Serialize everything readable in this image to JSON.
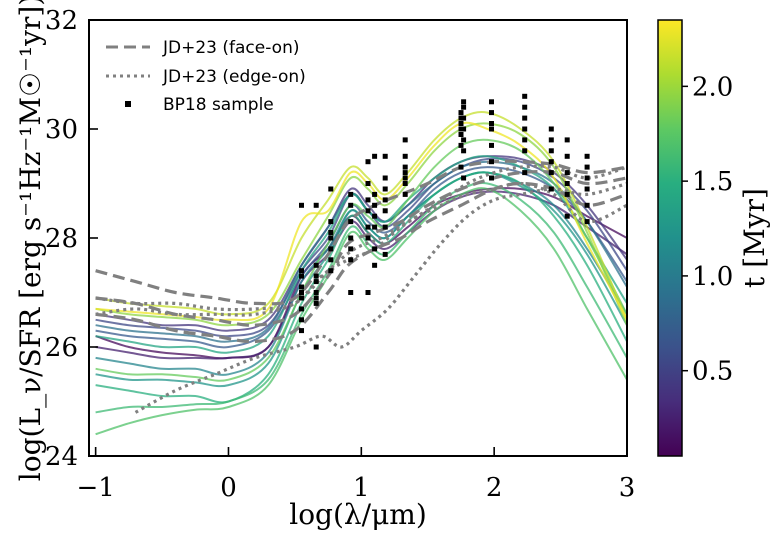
{
  "chart_data": {
    "type": "line",
    "xlabel": "log(λ/μm)",
    "ylabel": "log(L_ν/SFR [erg s⁻¹Hz⁻¹M☉⁻¹yr])",
    "xlim": [
      -1.05,
      3.0
    ],
    "ylim": [
      24,
      32
    ],
    "x_ticks": [
      -1,
      0,
      1,
      2,
      3
    ],
    "x_tick_labels": [
      "−1",
      "0",
      "1",
      "2",
      "3"
    ],
    "y_ticks": [
      24,
      26,
      28,
      30,
      32
    ],
    "y_tick_labels": [
      "24",
      "26",
      "28",
      "30",
      "32"
    ],
    "grid": false,
    "legend_position": "top-left",
    "legend": [
      {
        "label": "JD+23 (face-on)",
        "style": "dashed",
        "color": "#808080"
      },
      {
        "label": "JD+23 (edge-on)",
        "style": "dotted",
        "color": "#808080"
      },
      {
        "label": "BP18 sample",
        "style": "marker",
        "color": "#000000"
      }
    ],
    "colorbar": {
      "label": "t [Myr]",
      "colormap": "viridis",
      "range": [
        0.05,
        2.35
      ],
      "ticks": [
        0.5,
        1.0,
        1.5,
        2.0
      ],
      "tick_labels": [
        "0.5",
        "1.0",
        "1.5",
        "2.0"
      ]
    },
    "series": [
      {
        "t": 0.1,
        "y": [
          26.2,
          26.0,
          25.9,
          25.85,
          25.8,
          26.0,
          27.3,
          27.8,
          28.4,
          28.1,
          27.9,
          28.2,
          28.6,
          28.8,
          28.9,
          28.9,
          28.75,
          28.4,
          28.0
        ]
      },
      {
        "t": 0.25,
        "y": [
          26.0,
          25.9,
          25.8,
          25.8,
          25.8,
          26.0,
          27.2,
          27.7,
          28.3,
          28.0,
          27.8,
          28.1,
          28.5,
          28.75,
          28.85,
          28.8,
          28.6,
          28.2,
          27.7
        ]
      },
      {
        "t": 0.4,
        "y": [
          26.6,
          26.5,
          26.4,
          26.4,
          26.3,
          26.5,
          27.5,
          28.2,
          28.9,
          28.6,
          28.3,
          28.6,
          29.1,
          29.4,
          29.5,
          29.45,
          29.2,
          28.6,
          27.6
        ]
      },
      {
        "t": 0.55,
        "y": [
          26.5,
          26.4,
          26.35,
          26.3,
          26.2,
          26.4,
          27.4,
          28.0,
          28.8,
          28.5,
          28.2,
          28.5,
          29.0,
          29.3,
          29.45,
          29.4,
          29.1,
          28.5,
          27.4
        ]
      },
      {
        "t": 0.7,
        "y": [
          26.3,
          26.2,
          26.15,
          26.1,
          26.0,
          26.3,
          27.3,
          27.9,
          28.6,
          28.3,
          28.1,
          28.4,
          28.9,
          29.2,
          29.3,
          29.2,
          28.9,
          28.3,
          27.2
        ]
      },
      {
        "t": 0.9,
        "y": [
          26.4,
          26.3,
          26.25,
          26.2,
          26.1,
          26.35,
          27.5,
          28.2,
          28.8,
          28.5,
          28.3,
          28.6,
          29.0,
          29.3,
          29.4,
          29.3,
          29.0,
          28.3,
          27.1
        ]
      },
      {
        "t": 1.1,
        "y": [
          25.8,
          25.7,
          25.6,
          25.6,
          25.5,
          25.9,
          27.2,
          27.8,
          28.5,
          28.2,
          28.0,
          28.4,
          28.8,
          29.1,
          29.2,
          29.0,
          28.6,
          27.8,
          26.6
        ]
      },
      {
        "t": 1.25,
        "y": [
          25.5,
          25.4,
          25.4,
          25.35,
          25.3,
          25.7,
          27.0,
          27.7,
          28.5,
          28.2,
          28.0,
          28.4,
          28.8,
          29.1,
          29.2,
          28.95,
          28.5,
          27.7,
          26.4
        ]
      },
      {
        "t": 1.4,
        "y": [
          26.2,
          26.1,
          26.0,
          26.0,
          25.9,
          26.2,
          27.4,
          28.1,
          28.8,
          28.5,
          28.3,
          28.7,
          29.1,
          29.4,
          29.5,
          29.3,
          28.9,
          28.0,
          26.8
        ]
      },
      {
        "t": 1.5,
        "y": [
          25.3,
          25.2,
          25.1,
          25.1,
          25.0,
          25.5,
          26.8,
          27.6,
          28.4,
          28.1,
          27.9,
          28.3,
          28.8,
          29.1,
          29.2,
          29.0,
          28.4,
          27.5,
          26.1
        ]
      },
      {
        "t": 1.6,
        "y": [
          24.8,
          24.9,
          24.9,
          24.95,
          25.0,
          25.4,
          26.6,
          27.4,
          28.2,
          27.9,
          27.7,
          28.1,
          28.6,
          28.9,
          29.0,
          28.7,
          28.1,
          27.1,
          25.8
        ]
      },
      {
        "t": 1.7,
        "y": [
          24.4,
          24.6,
          24.75,
          24.85,
          24.9,
          25.3,
          26.5,
          27.3,
          28.1,
          27.8,
          27.6,
          28.0,
          28.5,
          28.8,
          28.9,
          28.5,
          27.8,
          26.7,
          25.4
        ]
      },
      {
        "t": 1.8,
        "y": [
          25.6,
          25.5,
          25.5,
          25.45,
          25.4,
          25.8,
          27.0,
          27.9,
          28.6,
          28.4,
          28.2,
          28.7,
          29.3,
          29.7,
          29.8,
          29.6,
          29.0,
          28.0,
          26.6
        ]
      },
      {
        "t": 1.95,
        "y": [
          26.7,
          26.6,
          26.55,
          26.5,
          26.4,
          26.6,
          27.6,
          28.4,
          29.1,
          28.9,
          28.6,
          29.0,
          29.6,
          30.0,
          30.1,
          29.9,
          29.3,
          28.1,
          26.4
        ]
      },
      {
        "t": 2.15,
        "y": [
          26.9,
          26.8,
          26.75,
          26.7,
          26.6,
          26.8,
          28.0,
          28.7,
          29.3,
          29.1,
          28.8,
          29.2,
          29.8,
          30.2,
          30.3,
          30.0,
          29.4,
          28.2,
          26.5
        ]
      },
      {
        "t": 2.3,
        "y": [
          26.7,
          26.65,
          26.6,
          26.55,
          26.5,
          26.7,
          28.3,
          28.5,
          29.2,
          29.0,
          28.7,
          29.1,
          29.7,
          30.1,
          30.0,
          29.7,
          29.1,
          27.9,
          26.5
        ]
      }
    ],
    "series_x": [
      -1.0,
      -0.75,
      -0.5,
      -0.25,
      0.0,
      0.3,
      0.55,
      0.75,
      0.92,
      1.05,
      1.18,
      1.35,
      1.55,
      1.75,
      1.95,
      2.2,
      2.45,
      2.7,
      3.0
    ],
    "face_on": [
      {
        "x": [
          -1.0,
          -0.7,
          -0.4,
          -0.1,
          0.2,
          0.5,
          0.75,
          0.9,
          1.1,
          1.3,
          1.5,
          1.75,
          2.0,
          2.2,
          2.45,
          2.7,
          3.0
        ],
        "y": [
          27.4,
          27.2,
          27.0,
          26.9,
          26.8,
          26.9,
          27.7,
          28.3,
          28.6,
          28.8,
          29.0,
          29.3,
          29.4,
          29.4,
          29.35,
          29.2,
          29.3
        ]
      },
      {
        "x": [
          -1.0,
          -0.7,
          -0.4,
          -0.1,
          0.2,
          0.5,
          0.75,
          0.9,
          1.1,
          1.3,
          1.5,
          1.75,
          2.0,
          2.2,
          2.45,
          2.7,
          3.0
        ],
        "y": [
          26.9,
          26.8,
          26.6,
          26.5,
          26.4,
          26.6,
          27.3,
          27.9,
          28.1,
          28.3,
          28.6,
          28.9,
          29.1,
          29.2,
          29.2,
          29.0,
          29.1
        ]
      },
      {
        "x": [
          -1.0,
          -0.7,
          -0.4,
          -0.1,
          0.2,
          0.5,
          0.75,
          0.9,
          1.1,
          1.3,
          1.5,
          1.75,
          2.0,
          2.2,
          2.45,
          2.7,
          3.0
        ],
        "y": [
          26.6,
          26.5,
          26.3,
          26.2,
          26.1,
          26.3,
          27.0,
          27.5,
          27.8,
          28.0,
          28.3,
          28.6,
          28.9,
          29.0,
          28.9,
          28.6,
          28.8
        ]
      }
    ],
    "edge_on": [
      {
        "x": [
          -0.7,
          -0.4,
          -0.1,
          0.2,
          0.5,
          0.7,
          0.85,
          1.0,
          1.2,
          1.4,
          1.6,
          1.8,
          2.0,
          2.2,
          2.45,
          2.7,
          3.0
        ],
        "y": [
          24.8,
          25.2,
          25.5,
          25.8,
          26.0,
          26.2,
          26.0,
          26.3,
          26.7,
          27.3,
          27.9,
          28.4,
          28.7,
          28.8,
          28.9,
          28.8,
          29.0
        ]
      },
      {
        "x": [
          -1.0,
          -0.7,
          -0.4,
          -0.1,
          0.2,
          0.5,
          0.7,
          0.9,
          1.1,
          1.3,
          1.55,
          1.8,
          2.0,
          2.2,
          2.45,
          2.7,
          3.0
        ],
        "y": [
          26.6,
          26.7,
          26.6,
          26.6,
          26.6,
          26.8,
          27.3,
          27.6,
          27.8,
          28.2,
          28.6,
          29.0,
          29.2,
          29.3,
          29.3,
          29.1,
          29.3
        ]
      },
      {
        "x": [
          -1.0,
          -0.7,
          -0.4,
          -0.1,
          0.2,
          0.5,
          0.75,
          0.95,
          1.15,
          1.35,
          1.6,
          1.8,
          2.0,
          2.2,
          2.45,
          2.7,
          3.0
        ],
        "y": [
          26.9,
          26.8,
          26.8,
          26.7,
          26.7,
          26.8,
          27.4,
          27.8,
          28.0,
          28.3,
          28.6,
          28.8,
          28.9,
          29.0,
          28.8,
          28.3,
          28.6
        ]
      }
    ],
    "bp18": [
      {
        "x": 0.55,
        "y": [
          26.3,
          26.5,
          26.7,
          26.9,
          27.0,
          27.1,
          27.3,
          27.4,
          28.6
        ]
      },
      {
        "x": 0.66,
        "y": [
          26.0,
          26.8,
          26.9,
          27.0,
          27.2,
          27.3,
          27.5,
          28.6
        ]
      },
      {
        "x": 0.77,
        "y": [
          27.4,
          27.6,
          27.8,
          28.0,
          28.1,
          28.3,
          28.9
        ]
      },
      {
        "x": 0.92,
        "y": [
          27.0,
          27.6,
          27.8,
          28.0,
          28.3,
          28.6,
          28.8
        ]
      },
      {
        "x": 1.05,
        "y": [
          27.0,
          28.0,
          28.2,
          28.5,
          28.7,
          29.0,
          29.4
        ]
      },
      {
        "x": 1.1,
        "y": [
          27.5,
          27.8,
          28.2,
          28.4,
          28.6,
          28.8,
          29.5
        ]
      },
      {
        "x": 1.18,
        "y": [
          27.7,
          28.2,
          28.5,
          28.7,
          28.9,
          29.1,
          29.5
        ]
      },
      {
        "x": 1.33,
        "y": [
          28.8,
          29.0,
          29.1,
          29.3,
          29.5,
          29.8,
          29.2
        ]
      },
      {
        "x": 1.75,
        "y": [
          29.3,
          29.7,
          29.9,
          30.0,
          30.1,
          30.2,
          30.3
        ]
      },
      {
        "x": 1.77,
        "y": [
          29.1,
          29.6,
          29.8,
          30.0,
          30.4,
          30.5,
          30.2
        ]
      },
      {
        "x": 1.98,
        "y": [
          29.1,
          29.4,
          29.7,
          30.0,
          30.1,
          30.3,
          30.5
        ]
      },
      {
        "x": 2.23,
        "y": [
          29.2,
          29.6,
          29.8,
          30.0,
          30.2,
          30.4,
          30.6
        ]
      },
      {
        "x": 2.43,
        "y": [
          28.9,
          29.2,
          29.4,
          29.6,
          29.8,
          30.0
        ]
      },
      {
        "x": 2.55,
        "y": [
          28.4,
          28.8,
          29.0,
          29.2,
          29.5,
          29.8
        ]
      },
      {
        "x": 2.7,
        "y": [
          28.3,
          28.6,
          28.9,
          29.1,
          29.3,
          29.5
        ]
      }
    ]
  }
}
